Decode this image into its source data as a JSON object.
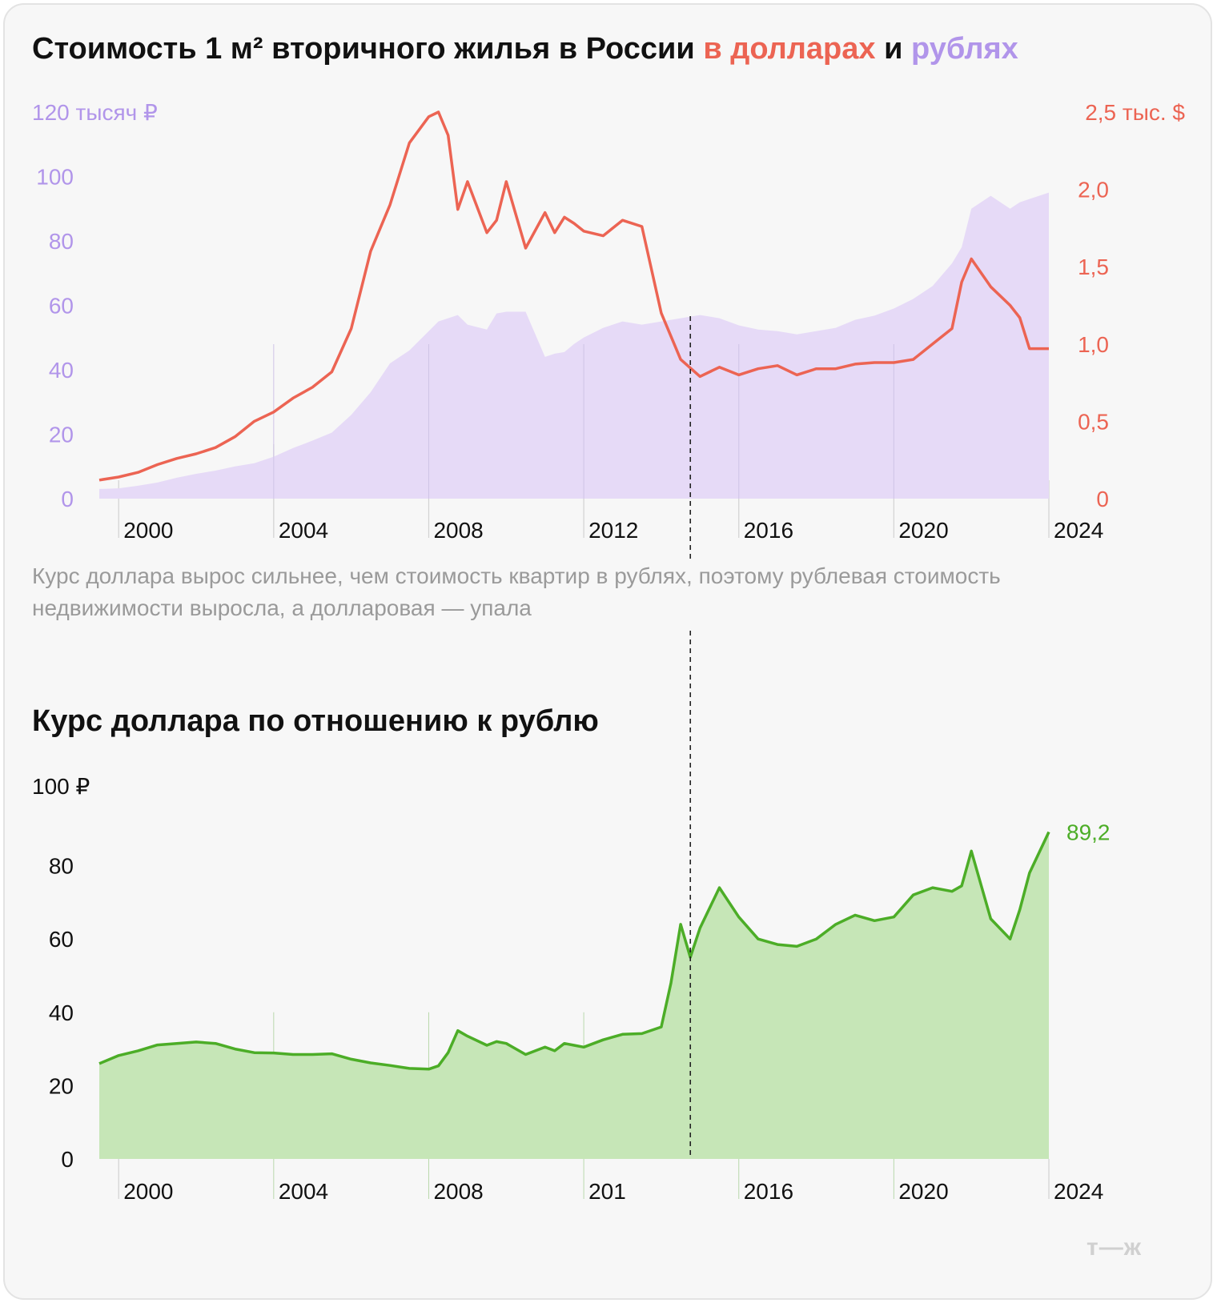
{
  "chart1": {
    "title_main": "Стоимость 1 м² вторичного жилья в России ",
    "title_usd": "в долларах",
    "title_and": " и ",
    "title_rub": "рублях",
    "left_axis_unit_label": "120 тысяч ₽",
    "right_axis_unit_label": "2,5 тыс. $",
    "left_ticks": [
      "100",
      "80",
      "60",
      "40",
      "20",
      "0"
    ],
    "right_ticks": [
      "2,0",
      "1,5",
      "1,0",
      "0,5",
      "0"
    ],
    "x_ticks": [
      "2000",
      "2004",
      "2008",
      "2012",
      "2016",
      "2020",
      "2024"
    ]
  },
  "annotation": "Курс доллара вырос сильнее, чем стоимость квартир в рублях, поэтому рублевая стоимость недвижимости выросла, а долларовая — упала",
  "chart2": {
    "title": "Курс доллара по отношению к рублю",
    "y_unit_label": "100 ₽",
    "y_ticks": [
      "80",
      "60",
      "40",
      "20",
      "0"
    ],
    "x_ticks": [
      "2000",
      "2004",
      "2008",
      "201",
      "2016",
      "2020",
      "2024"
    ],
    "last_value_label": "89,2"
  },
  "logo": "т—ж",
  "colors": {
    "usd": "#ec6453",
    "rub_fill": "#e6daf7",
    "rub_text": "#b195ea",
    "fx_line": "#4cad27",
    "fx_fill": "#c6e6b7"
  },
  "chart_data": [
    {
      "type": "area",
      "title": "Стоимость 1 м² вторичного жилья в России в долларах и рублях",
      "subtitle": "",
      "xlabel": "",
      "ylabel": "120 тысяч ₽",
      "y2label": "2,5 тыс. $",
      "xlim": [
        1999.5,
        2024
      ],
      "ylim": [
        0,
        120
      ],
      "y2lim": [
        0,
        2.5
      ],
      "grid": true,
      "series": [
        {
          "name": "рублях",
          "axis": "left",
          "type": "area",
          "x": [
            1999.5,
            2000,
            2000.5,
            2001,
            2001.5,
            2002,
            2002.5,
            2003,
            2003.5,
            2004,
            2004.5,
            2005,
            2005.5,
            2006,
            2006.5,
            2007,
            2007.5,
            2008,
            2008.25,
            2008.5,
            2008.75,
            2009,
            2009.5,
            2009.75,
            2010,
            2010.5,
            2011,
            2011.25,
            2011.5,
            2011.75,
            2012,
            2012.5,
            2013,
            2013.5,
            2014,
            2014.5,
            2015,
            2015.5,
            2016,
            2016.5,
            2017,
            2017.5,
            2018,
            2018.5,
            2019,
            2019.5,
            2020,
            2020.5,
            2021,
            2021.5,
            2021.75,
            2022,
            2022.5,
            2023,
            2023.25,
            2023.5,
            2024
          ],
          "values": [
            3,
            3.2,
            4,
            5,
            6.5,
            7.7,
            8.7,
            10,
            11,
            13,
            15.7,
            18,
            20.5,
            26,
            33,
            42,
            46,
            52,
            55,
            56,
            57,
            54,
            52.5,
            57.5,
            58,
            58,
            44,
            45,
            45.5,
            48,
            50,
            53,
            55,
            54,
            55,
            56,
            57,
            56,
            53.8,
            52.5,
            52,
            51,
            52,
            53,
            55.5,
            56.8,
            59,
            62,
            66,
            73,
            78,
            90,
            94,
            90,
            92,
            93,
            95
          ]
        },
        {
          "name": "долларах",
          "axis": "right",
          "type": "line",
          "x": [
            1999.5,
            2000,
            2000.5,
            2001,
            2001.5,
            2002,
            2002.5,
            2003,
            2003.5,
            2004,
            2004.5,
            2005,
            2005.5,
            2006,
            2006.5,
            2007,
            2007.5,
            2008,
            2008.25,
            2008.5,
            2008.75,
            2009,
            2009.5,
            2009.75,
            2010,
            2010.5,
            2011,
            2011.25,
            2011.5,
            2011.75,
            2012,
            2012.5,
            2013,
            2013.5,
            2014,
            2014.5,
            2015,
            2015.5,
            2016,
            2016.5,
            2017,
            2017.5,
            2018,
            2018.5,
            2019,
            2019.5,
            2020,
            2020.5,
            2021,
            2021.5,
            2021.75,
            2022,
            2022.5,
            2023,
            2023.25,
            2023.5,
            2024
          ],
          "values": [
            0.12,
            0.14,
            0.17,
            0.22,
            0.26,
            0.29,
            0.33,
            0.4,
            0.5,
            0.56,
            0.65,
            0.72,
            0.82,
            1.1,
            1.6,
            1.9,
            2.3,
            2.47,
            2.5,
            2.35,
            1.87,
            2.05,
            1.72,
            1.8,
            2.05,
            1.62,
            1.85,
            1.72,
            1.82,
            1.78,
            1.73,
            1.7,
            1.8,
            1.76,
            1.2,
            0.9,
            0.79,
            0.85,
            0.8,
            0.84,
            0.86,
            0.8,
            0.84,
            0.84,
            0.87,
            0.88,
            0.88,
            0.9,
            1.0,
            1.1,
            1.4,
            1.55,
            1.37,
            1.25,
            1.17,
            0.97,
            0.97
          ]
        }
      ]
    },
    {
      "type": "area",
      "title": "Курс доллара по отношению к рублю",
      "subtitle": "",
      "xlabel": "",
      "ylabel": "100 ₽",
      "xlim": [
        1999.5,
        2024
      ],
      "ylim": [
        0,
        100
      ],
      "grid": true,
      "series": [
        {
          "name": "",
          "x": [
            1999.5,
            2000,
            2000.5,
            2001,
            2001.5,
            2002,
            2002.5,
            2003,
            2003.5,
            2004,
            2004.5,
            2005,
            2005.5,
            2006,
            2006.5,
            2007,
            2007.5,
            2008,
            2008.25,
            2008.5,
            2008.75,
            2009,
            2009.5,
            2009.75,
            2010,
            2010.5,
            2011,
            2011.25,
            2011.5,
            2011.75,
            2012,
            2012.5,
            2013,
            2013.5,
            2014,
            2014.25,
            2014.5,
            2014.75,
            2015,
            2015.5,
            2016,
            2016.5,
            2017,
            2017.5,
            2018,
            2018.5,
            2019,
            2019.5,
            2020,
            2020.5,
            2021,
            2021.5,
            2021.75,
            2022,
            2022.5,
            2023,
            2023.25,
            2023.5,
            2024
          ],
          "values": [
            26.0,
            28.2,
            29.5,
            31.1,
            31.5,
            31.9,
            31.5,
            30.0,
            29.0,
            28.9,
            28.5,
            28.5,
            28.7,
            27.2,
            26.2,
            25.5,
            24.7,
            24.5,
            25.4,
            29.0,
            35.0,
            33.5,
            31.0,
            32.0,
            31.5,
            28.5,
            30.5,
            29.5,
            31.5,
            31.0,
            30.5,
            32.5,
            34.0,
            34.2,
            36.0,
            48.0,
            64.0,
            55.0,
            63.0,
            74.0,
            66.0,
            60.0,
            58.5,
            58.0,
            60.0,
            64.0,
            66.5,
            65.0,
            66.0,
            72.0,
            74.0,
            73.0,
            74.5,
            84.0,
            65.5,
            60.0,
            68.0,
            78.0,
            89.2
          ]
        }
      ]
    }
  ]
}
